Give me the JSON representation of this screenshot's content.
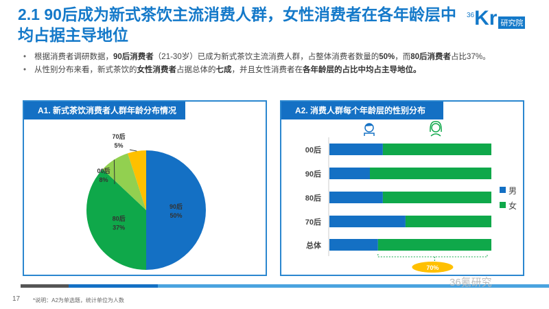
{
  "header": {
    "title": "2.1 90后成为新式茶饮主流消费人群，女性消费者在各年龄层中均占据主导地位",
    "logo_text": "36Kr研究院",
    "logo_sup": "36",
    "logo_k": "Kr",
    "logo_tag": "研究院"
  },
  "bullets": [
    {
      "parts": [
        {
          "t": "根据消费者调研数据，",
          "b": false
        },
        {
          "t": "90后消费者",
          "b": true
        },
        {
          "t": "（21-30岁）已成为新式茶饮主流消费人群，占整体消费者数量的",
          "b": false
        },
        {
          "t": "50%",
          "b": true
        },
        {
          "t": "，而",
          "b": false
        },
        {
          "t": "80后消费者",
          "b": true
        },
        {
          "t": "占比37%。",
          "b": false
        }
      ]
    },
    {
      "parts": [
        {
          "t": "从性别分布来看，新式茶饮的",
          "b": false
        },
        {
          "t": "女性消费者",
          "b": true
        },
        {
          "t": "占据总体的",
          "b": false
        },
        {
          "t": "七成",
          "b": true
        },
        {
          "t": "，并且女性消费者在",
          "b": false
        },
        {
          "t": "各年龄层的占比中均占主导地位。",
          "b": true
        }
      ]
    }
  ],
  "chart_data": [
    {
      "type": "pie",
      "title": "A1. 新式茶饮消费者人群年龄分布情况",
      "slices": [
        {
          "label": "90后",
          "value": 50,
          "color": "#1470c4",
          "text": "90后",
          "pct": "50%"
        },
        {
          "label": "80后",
          "value": 37,
          "color": "#0fa84a",
          "text": "80后",
          "pct": "37%"
        },
        {
          "label": "00后",
          "value": 8,
          "color": "#92d050",
          "text": "00后",
          "pct": "8%"
        },
        {
          "label": "70后",
          "value": 5,
          "color": "#ffc000",
          "text": "70后",
          "pct": "5%"
        }
      ]
    },
    {
      "type": "bar",
      "stacked": true,
      "orientation": "horizontal",
      "title": "A2. 消费人群每个年龄层的性别分布",
      "categories": [
        "00后",
        "90后",
        "80后",
        "70后",
        "总体"
      ],
      "series": [
        {
          "name": "男",
          "values": [
            33,
            25,
            33,
            47,
            30
          ],
          "color": "#1470c4"
        },
        {
          "name": "女",
          "values": [
            67,
            75,
            67,
            53,
            70
          ],
          "color": "#0fa84a"
        }
      ],
      "xlim": [
        0,
        100
      ],
      "annotation": "70%"
    }
  ],
  "footer": {
    "page": "17",
    "note": "*说明：A2为单选题，统计单位为人数",
    "watermark": "36氪研究"
  }
}
